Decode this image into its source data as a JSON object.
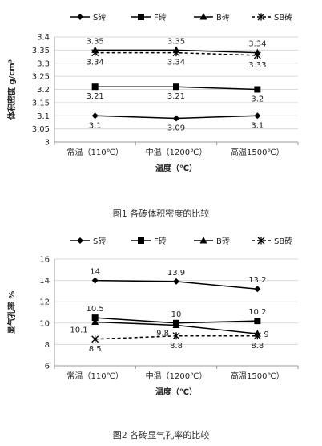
{
  "chart_data": [
    {
      "type": "line",
      "caption": "图1 各砖体积密度的比较",
      "xlabel": "温度（℃）",
      "ylabel": "体积密度 g/cm³",
      "categories": [
        "常温（110℃）",
        "中温（1200℃）",
        "高温1500℃）"
      ],
      "ylim": [
        3,
        3.4
      ],
      "yticks": [
        "3",
        "3.05",
        "3.1",
        "3.15",
        "3.2",
        "3.25",
        "3.3",
        "3.35",
        "3.4"
      ],
      "legend_position": "top",
      "grid": true,
      "series": [
        {
          "name": "S砖",
          "marker": "diamond",
          "dash": "solid",
          "values": [
            3.1,
            3.09,
            3.1
          ],
          "labels": [
            "3.1",
            "3.09",
            "3.1"
          ],
          "label_pos": "below"
        },
        {
          "name": "F砖",
          "marker": "square",
          "dash": "solid",
          "values": [
            3.21,
            3.21,
            3.2
          ],
          "labels": [
            "3.21",
            "3.21",
            "3.2"
          ],
          "label_pos": "below"
        },
        {
          "name": "B砖",
          "marker": "triangle",
          "dash": "solid",
          "values": [
            3.35,
            3.35,
            3.34
          ],
          "labels": [
            "3.35",
            "3.35",
            "3.34"
          ],
          "label_pos": "above"
        },
        {
          "name": "SB砖",
          "marker": "star",
          "dash": "dashed",
          "values": [
            3.34,
            3.34,
            3.33
          ],
          "labels": [
            "3.34",
            "3.34",
            "3.33"
          ],
          "label_pos": "below"
        }
      ]
    },
    {
      "type": "line",
      "caption": "图2 各砖显气孔率的比较",
      "xlabel": "温度（℃）",
      "ylabel": "显气孔率 %",
      "categories": [
        "常温（110℃）",
        "中温（1200℃）",
        "高温1500℃）"
      ],
      "ylim": [
        6,
        16
      ],
      "yticks": [
        "6",
        "8",
        "10",
        "12",
        "14",
        "16"
      ],
      "legend_position": "top",
      "grid": true,
      "series": [
        {
          "name": "S砖",
          "marker": "diamond",
          "dash": "solid",
          "values": [
            14,
            13.9,
            13.2
          ],
          "labels": [
            "14",
            "13.9",
            "13.2"
          ],
          "label_pos": "above"
        },
        {
          "name": "F砖",
          "marker": "square",
          "dash": "solid",
          "values": [
            10.5,
            10,
            10.2
          ],
          "labels": [
            "10.5",
            "10",
            "10.2"
          ],
          "label_pos": "above"
        },
        {
          "name": "B砖",
          "marker": "triangle",
          "dash": "solid",
          "values": [
            10.1,
            9.8,
            9
          ],
          "labels": [
            "10.1",
            "9.8",
            "9"
          ],
          "label_pos": "below-left"
        },
        {
          "name": "SB砖",
          "marker": "star",
          "dash": "dashed",
          "values": [
            8.5,
            8.8,
            8.8
          ],
          "labels": [
            "8.5",
            "8.8",
            "8.8"
          ],
          "label_pos": "below"
        }
      ]
    }
  ]
}
